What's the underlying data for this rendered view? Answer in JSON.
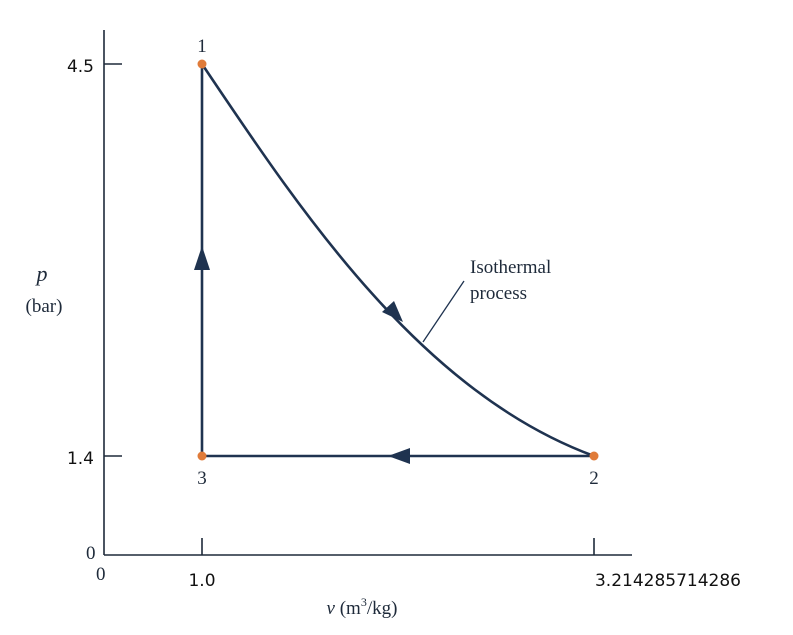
{
  "diagram": {
    "y_axis": {
      "symbol": "p",
      "unit": "(bar)",
      "ticks": [
        "4.5",
        "1.4",
        "0"
      ]
    },
    "x_axis": {
      "label_prefix": "v (m",
      "label_sup": "3",
      "label_suffix": "/kg)",
      "ticks": [
        "0",
        "1.0",
        "3.214285714286"
      ]
    },
    "states": [
      {
        "label": "1",
        "v": 1.0,
        "p": 4.5
      },
      {
        "label": "2",
        "v": 3.214285714286,
        "p": 1.4
      },
      {
        "label": "3",
        "v": 1.0,
        "p": 1.4
      }
    ],
    "annotation": {
      "line1": "Isothermal",
      "line2": "process"
    },
    "colors": {
      "state_dot": "#e07b39",
      "process_line": "#1f3350",
      "axis": "#1e2a3a"
    }
  }
}
